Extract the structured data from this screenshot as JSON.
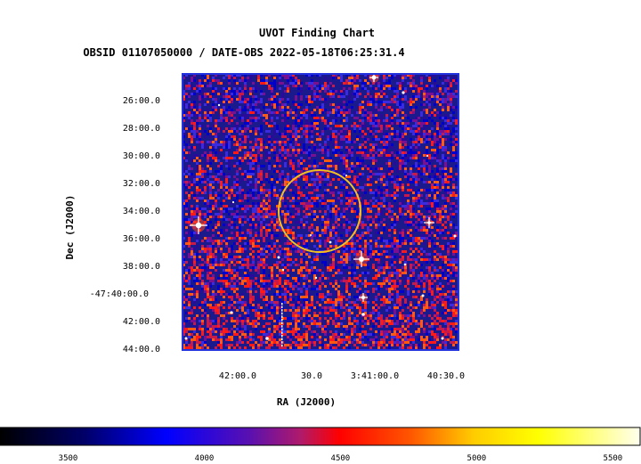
{
  "chart_data": {
    "type": "heatmap",
    "title": "UVOT Finding Chart",
    "subtitle": "OBSID 01107050000 / DATE-OBS 2022-05-18T06:25:31.4",
    "xlabel": "RA (J2000)",
    "ylabel": "Dec (J2000)",
    "x_ticks": [
      "42:00.0",
      "30.0",
      "3:41:00.0",
      "40:30.0"
    ],
    "y_ticks": [
      "26:00.0",
      "28:00.0",
      "30:00.0",
      "32:00.0",
      "34:00.0",
      "36:00.0",
      "38:00.0",
      "-47:40:00.0",
      "42:00.0",
      "44:00.0"
    ],
    "colorbar": {
      "range": [
        3250,
        5600
      ],
      "tick_values": [
        3500,
        4000,
        4500,
        5000,
        5500
      ],
      "tick_labels": [
        "3500",
        "4000",
        "4500",
        "5000",
        "5500"
      ]
    },
    "colors": {
      "frame": "#2233dd",
      "circle": "#f0c020",
      "background_sky": "#1a1a8c"
    }
  }
}
